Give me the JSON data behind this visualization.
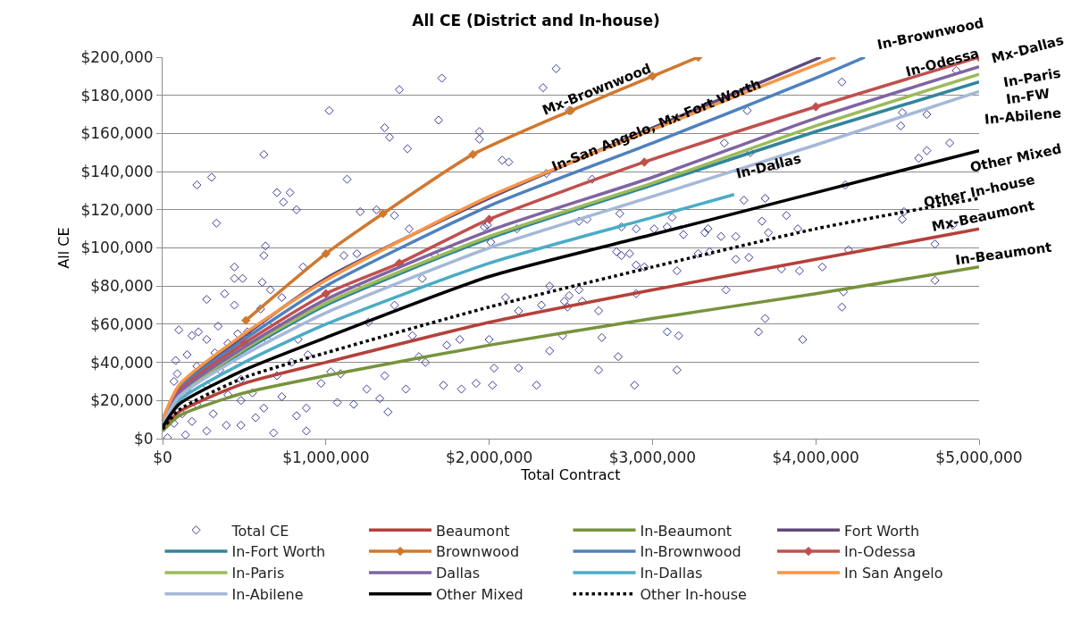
{
  "chart_data": {
    "type": "line",
    "title": "All CE (District and In-house)",
    "xlabel": "Total Contract",
    "ylabel": "All CE",
    "xlim": [
      0,
      5000000
    ],
    "ylim": [
      0,
      200000
    ],
    "xticks": [
      {
        "value": 0,
        "label": "$0"
      },
      {
        "value": 1000000,
        "label": "$1,000,000"
      },
      {
        "value": 2000000,
        "label": "$2,000,000"
      },
      {
        "value": 3000000,
        "label": "$3,000,000"
      },
      {
        "value": 4000000,
        "label": "$4,000,000"
      },
      {
        "value": 5000000,
        "label": "$5,000,000"
      }
    ],
    "yticks": [
      {
        "value": 0,
        "label": "$0"
      },
      {
        "value": 20000,
        "label": "$20,000"
      },
      {
        "value": 40000,
        "label": "$40,000"
      },
      {
        "value": 60000,
        "label": "$60,000"
      },
      {
        "value": 80000,
        "label": "$80,000"
      },
      {
        "value": 100000,
        "label": "$100,000"
      },
      {
        "value": 120000,
        "label": "$120,000"
      },
      {
        "value": 140000,
        "label": "$140,000"
      },
      {
        "value": 160000,
        "label": "$160,000"
      },
      {
        "value": 180000,
        "label": "$180,000"
      },
      {
        "value": 200000,
        "label": "$200,000"
      }
    ],
    "grid": "y",
    "legend": "bottom",
    "series": [
      {
        "name": "Total CE",
        "type": "scatter",
        "marker": "diamond",
        "color": "#3b3b98",
        "x": [
          1020000,
          1450000,
          1710000,
          1690000,
          1360000,
          1390000,
          1500000,
          1940000,
          1940000,
          2080000,
          2120000,
          620000,
          210000,
          300000,
          1130000,
          330000,
          700000,
          780000,
          740000,
          820000,
          1210000,
          1310000,
          1420000,
          630000,
          620000,
          1110000,
          1190000,
          440000,
          490000,
          440000,
          860000,
          610000,
          270000,
          380000,
          440000,
          2100000,
          2180000,
          1820000,
          2000000,
          2030000,
          2180000,
          1720000,
          1830000,
          1920000,
          2020000,
          2290000,
          1490000,
          1250000,
          1330000,
          1380000,
          1070000,
          1170000,
          880000,
          680000,
          820000,
          880000,
          1360000,
          970000,
          1030000,
          1090000,
          1570000,
          1610000,
          1740000,
          1530000,
          1260000,
          1420000,
          1590000,
          1670000,
          1510000,
          2010000,
          1970000,
          1990000,
          2170000,
          100000,
          180000,
          220000,
          150000,
          80000,
          90000,
          270000,
          340000,
          400000,
          460000,
          520000,
          320000,
          210000,
          350000,
          480000,
          550000,
          620000,
          570000,
          480000,
          390000,
          270000,
          140000,
          30000,
          70000,
          180000,
          310000,
          210000,
          120000,
          150000,
          270000,
          400000,
          480000,
          730000,
          700000,
          790000,
          890000,
          830000,
          640000,
          600000,
          730000,
          660000,
          70000,
          2410000,
          2330000,
          2490000,
          4160000,
          4860000,
          4530000,
          4680000,
          4520000,
          3580000,
          3440000,
          3600000,
          4630000,
          4680000,
          4820000,
          3760000,
          2630000,
          2350000,
          4180000,
          3560000,
          3690000,
          2550000,
          2600000,
          2800000,
          3120000,
          3670000,
          3820000,
          4540000,
          4530000,
          2810000,
          2900000,
          3010000,
          3090000,
          3190000,
          3320000,
          3340000,
          3420000,
          3510000,
          3710000,
          3890000,
          4840000,
          3280000,
          3350000,
          2780000,
          2810000,
          2860000,
          2900000,
          2950000,
          3510000,
          3590000,
          3150000,
          3790000,
          3900000,
          4040000,
          4200000,
          4730000,
          4730000,
          3450000,
          2370000,
          2550000,
          2570000,
          2490000,
          2320000,
          2460000,
          2480000,
          2900000,
          2670000,
          4170000,
          4160000,
          3690000,
          3650000,
          3090000,
          3160000,
          2690000,
          2450000,
          2370000,
          2790000,
          3920000,
          2670000,
          3150000,
          2890000
        ],
        "values": [
          172000,
          183000,
          189000,
          167000,
          163000,
          158000,
          152000,
          161000,
          157000,
          146000,
          145000,
          149000,
          133000,
          137000,
          136000,
          113000,
          129000,
          129000,
          124000,
          120000,
          119000,
          120000,
          117000,
          101000,
          96000,
          96000,
          97000,
          90000,
          84000,
          84000,
          90000,
          82000,
          73000,
          76000,
          70000,
          74000,
          67000,
          52000,
          52000,
          37000,
          37000,
          28000,
          26000,
          29000,
          28000,
          28000,
          26000,
          26000,
          21000,
          14000,
          19000,
          18000,
          4000,
          3000,
          12000,
          16000,
          33000,
          29000,
          35000,
          34000,
          43000,
          40000,
          49000,
          54000,
          61000,
          70000,
          84000,
          96000,
          110000,
          103000,
          111000,
          112000,
          110000,
          57000,
          54000,
          56000,
          44000,
          41000,
          34000,
          52000,
          59000,
          50000,
          55000,
          56000,
          45000,
          38000,
          36000,
          31000,
          24000,
          16000,
          11000,
          7000,
          7000,
          4000,
          2000,
          500,
          8000,
          9000,
          13000,
          18000,
          13000,
          26000,
          28000,
          23000,
          20000,
          22000,
          33000,
          40000,
          44000,
          52000,
          52000,
          68000,
          74000,
          78000,
          30000,
          194000,
          184000,
          172000,
          187000,
          193000,
          171000,
          170000,
          164000,
          172000,
          155000,
          150000,
          147000,
          151000,
          155000,
          143000,
          136000,
          139000,
          133000,
          125000,
          126000,
          114000,
          115000,
          118000,
          116000,
          114000,
          117000,
          119000,
          115000,
          111000,
          110000,
          110000,
          111000,
          107000,
          108000,
          110000,
          106000,
          106000,
          108000,
          110000,
          112000,
          97000,
          98000,
          98000,
          96000,
          97000,
          91000,
          90000,
          94000,
          95000,
          88000,
          89000,
          88000,
          90000,
          99000,
          102000,
          83000,
          78000,
          80000,
          78000,
          72000,
          75000,
          70000,
          72000,
          69000,
          76000,
          67000,
          77000,
          69000,
          63000,
          56000,
          56000,
          54000,
          53000,
          54000,
          46000,
          43000,
          52000,
          36000,
          36000,
          28000
        ]
      },
      {
        "name": "Beaumont",
        "color": "#b5403a",
        "x": [
          0,
          100000,
          500000,
          1000000,
          2000000,
          3000000,
          4000000,
          5000000
        ],
        "values": [
          5000,
          14000,
          29000,
          40000,
          61000,
          78000,
          94000,
          110000
        ]
      },
      {
        "name": "In-Beaumont",
        "color": "#77933c",
        "x": [
          0,
          100000,
          500000,
          1000000,
          2000000,
          3000000,
          4000000,
          5000000
        ],
        "values": [
          4000,
          12000,
          24000,
          33000,
          49000,
          63000,
          76000,
          90000
        ]
      },
      {
        "name": "Fort Worth",
        "color": "#604a7b",
        "x": [
          0,
          100000,
          500000,
          1000000,
          2000000,
          3000000,
          4030000
        ],
        "values": [
          10000,
          27000,
          54000,
          84000,
          126000,
          163000,
          200000
        ]
      },
      {
        "name": "In-Fort Worth",
        "color": "#31859c",
        "x": [
          0,
          100000,
          500000,
          1000000,
          2000000,
          3000000,
          4000000,
          5000000
        ],
        "values": [
          8000,
          23000,
          46000,
          70000,
          105000,
          133000,
          161000,
          187000
        ]
      },
      {
        "name": "Brownwood",
        "color": "#d0782e",
        "marker": "diamond",
        "x": [
          510000,
          1000000,
          1350000,
          1900000,
          2500000,
          3000000,
          3280000
        ],
        "values": [
          62000,
          97000,
          118000,
          149000,
          172000,
          190000,
          200000
        ]
      },
      {
        "name": "In-Brownwood",
        "color": "#4f81bd",
        "x": [
          0,
          100000,
          500000,
          1000000,
          2000000,
          3000000,
          4000000,
          4300000
        ],
        "values": [
          9000,
          26000,
          52000,
          80000,
          122000,
          155000,
          189000,
          200000
        ]
      },
      {
        "name": "In-Odessa",
        "color": "#c0504d",
        "marker": "diamond",
        "x": [
          0,
          100000,
          500000,
          1000000,
          1450000,
          2000000,
          2950000,
          4000000,
          5000000
        ],
        "values": [
          8000,
          25000,
          50000,
          76000,
          92000,
          115000,
          145000,
          174000,
          200000
        ]
      },
      {
        "name": "In-Paris",
        "color": "#9bbb59",
        "x": [
          0,
          100000,
          500000,
          1000000,
          2000000,
          3000000,
          4000000,
          5000000
        ],
        "values": [
          8000,
          23000,
          47000,
          71000,
          106000,
          134000,
          164000,
          191000
        ]
      },
      {
        "name": "Dallas",
        "color": "#8064a2",
        "x": [
          0,
          100000,
          500000,
          1000000,
          2000000,
          3000000,
          4000000,
          5000000
        ],
        "values": [
          8000,
          24000,
          48000,
          73000,
          109000,
          137000,
          168000,
          195000
        ]
      },
      {
        "name": "In-Dallas",
        "color": "#4bacc6",
        "x": [
          0,
          100000,
          500000,
          1000000,
          2000000,
          3000000,
          3500000
        ],
        "values": [
          7000,
          20000,
          40000,
          60000,
          92000,
          116000,
          128000
        ]
      },
      {
        "name": "In San Angelo",
        "color": "#f79646",
        "x": [
          0,
          100000,
          500000,
          1000000,
          2000000,
          3000000,
          4000000,
          4120000
        ],
        "values": [
          10000,
          28000,
          55000,
          83000,
          127000,
          162000,
          196000,
          200000
        ]
      },
      {
        "name": "In-Abilene",
        "color": "#a5b8d8",
        "x": [
          0,
          100000,
          500000,
          1000000,
          2000000,
          3000000,
          4000000,
          5000000
        ],
        "values": [
          7000,
          22000,
          44000,
          66000,
          100000,
          127000,
          154000,
          182000
        ]
      },
      {
        "name": "Other Mixed",
        "color": "#000000",
        "x": [
          0,
          100000,
          500000,
          1000000,
          2000000,
          3000000,
          4000000,
          5000000
        ],
        "values": [
          6000,
          18000,
          36000,
          53000,
          85000,
          107000,
          129000,
          151000
        ]
      },
      {
        "name": "Other In-house",
        "color": "#000000",
        "line_style": "dotted",
        "x": [
          0,
          100000,
          500000,
          1000000,
          2000000,
          3000000,
          4000000,
          5000000
        ],
        "values": [
          5000,
          15000,
          32000,
          45000,
          69000,
          90000,
          110000,
          126000
        ]
      }
    ],
    "annotations": [
      {
        "text": "In-Dallas",
        "x": 3710000,
        "y": 143000
      },
      "Mx-Brownwood",
      "In-San Angelo, Mx-Fort Worth",
      "In-Brownwood",
      "In-Odessa",
      "Mx-Dallas",
      "In-Paris",
      "In-FW",
      "In-Abilene",
      "Other Mixed",
      "Other In-house",
      "Mx-Beaumont",
      "In-Beaumont"
    ]
  }
}
